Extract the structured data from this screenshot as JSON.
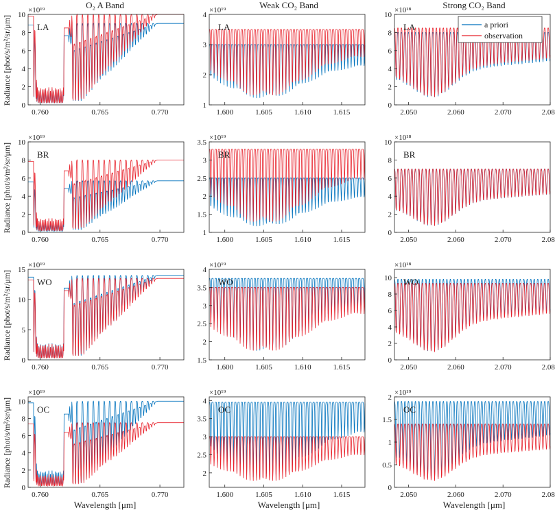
{
  "figure": {
    "column_titles": [
      "O₂ A Band",
      "Weak CO₂ Band",
      "Strong CO₂ Band"
    ],
    "row_labels": [
      "LA",
      "BR",
      "WO",
      "OC"
    ],
    "ylabel": "Radiance [phot/s/m²/sr/μm]",
    "xlabel": "Wavelength [μm]",
    "legend": [
      "a priori",
      "observation"
    ],
    "colors": {
      "a_priori": "#0072BD",
      "observation": "#E8212B"
    }
  },
  "chart_data": [
    {
      "type": "line",
      "row": "LA",
      "band": "O₂ A Band",
      "exponent": "×10¹⁹",
      "xlim": [
        0.759,
        0.772
      ],
      "ylim": [
        0,
        10
      ],
      "xticks": [
        {
          "v": 0.76,
          "label": "0.760"
        },
        {
          "v": 0.765,
          "label": "0.765"
        },
        {
          "v": 0.77,
          "label": "0.770"
        }
      ],
      "yticks": [
        {
          "v": 0,
          "label": "0"
        },
        {
          "v": 2,
          "label": "2"
        },
        {
          "v": 4,
          "label": "4"
        },
        {
          "v": 6,
          "label": "6"
        },
        {
          "v": 8,
          "label": "8"
        },
        {
          "v": 10,
          "label": "10"
        }
      ],
      "series": [
        {
          "name": "a priori",
          "cont": 9.0
        },
        {
          "name": "observation",
          "cont": 10.0
        }
      ]
    },
    {
      "type": "line",
      "row": "LA",
      "band": "Weak CO₂ Band",
      "exponent": "×10¹⁹",
      "xlim": [
        1.598,
        1.618
      ],
      "ylim": [
        1,
        4
      ],
      "xticks": [
        {
          "v": 1.6,
          "label": "1.600"
        },
        {
          "v": 1.605,
          "label": "1.605"
        },
        {
          "v": 1.61,
          "label": "1.610"
        },
        {
          "v": 1.615,
          "label": "1.615"
        }
      ],
      "yticks": [
        {
          "v": 1,
          "label": "1"
        },
        {
          "v": 2,
          "label": "2"
        },
        {
          "v": 3,
          "label": "3"
        },
        {
          "v": 4,
          "label": "4"
        }
      ],
      "series": [
        {
          "name": "a priori",
          "cont": 3.0
        },
        {
          "name": "observation",
          "cont": 3.5
        }
      ]
    },
    {
      "type": "line",
      "row": "LA",
      "band": "Strong CO₂ Band",
      "exponent": "×10¹⁸",
      "xlim": [
        2.047,
        2.08
      ],
      "ylim": [
        0,
        10
      ],
      "xticks": [
        {
          "v": 2.05,
          "label": "2.050"
        },
        {
          "v": 2.06,
          "label": "2.060"
        },
        {
          "v": 2.07,
          "label": "2.070"
        },
        {
          "v": 2.08,
          "label": "2.080"
        }
      ],
      "yticks": [
        {
          "v": 0,
          "label": "0"
        },
        {
          "v": 2,
          "label": "2"
        },
        {
          "v": 4,
          "label": "4"
        },
        {
          "v": 6,
          "label": "6"
        },
        {
          "v": 8,
          "label": "8"
        },
        {
          "v": 10,
          "label": "10"
        }
      ],
      "series": [
        {
          "name": "a priori",
          "cont": 8.0
        },
        {
          "name": "observation",
          "cont": 8.5
        }
      ]
    },
    {
      "type": "line",
      "row": "BR",
      "band": "O₂ A Band",
      "exponent": "×10¹⁹",
      "xlim": [
        0.759,
        0.772
      ],
      "ylim": [
        0,
        10
      ],
      "xticks": [
        {
          "v": 0.76,
          "label": "0.760"
        },
        {
          "v": 0.765,
          "label": "0.765"
        },
        {
          "v": 0.77,
          "label": "0.770"
        }
      ],
      "yticks": [
        {
          "v": 0,
          "label": "0"
        },
        {
          "v": 2,
          "label": "2"
        },
        {
          "v": 4,
          "label": "4"
        },
        {
          "v": 6,
          "label": "6"
        },
        {
          "v": 8,
          "label": "8"
        },
        {
          "v": 10,
          "label": "10"
        }
      ],
      "series": [
        {
          "name": "a priori",
          "cont": 5.7
        },
        {
          "name": "observation",
          "cont": 8.0
        }
      ]
    },
    {
      "type": "line",
      "row": "BR",
      "band": "Weak CO₂ Band",
      "exponent": "×10¹⁹",
      "xlim": [
        1.598,
        1.618
      ],
      "ylim": [
        1,
        3.5
      ],
      "xticks": [
        {
          "v": 1.6,
          "label": "1.600"
        },
        {
          "v": 1.605,
          "label": "1.605"
        },
        {
          "v": 1.61,
          "label": "1.610"
        },
        {
          "v": 1.615,
          "label": "1.615"
        }
      ],
      "yticks": [
        {
          "v": 1,
          "label": "1"
        },
        {
          "v": 1.5,
          "label": "1.5"
        },
        {
          "v": 2,
          "label": "2"
        },
        {
          "v": 2.5,
          "label": "2.5"
        },
        {
          "v": 3,
          "label": "3"
        },
        {
          "v": 3.5,
          "label": "3.5"
        }
      ],
      "series": [
        {
          "name": "a priori",
          "cont": 2.5
        },
        {
          "name": "observation",
          "cont": 3.3
        }
      ]
    },
    {
      "type": "line",
      "row": "BR",
      "band": "Strong CO₂ Band",
      "exponent": "×10¹⁸",
      "xlim": [
        2.047,
        2.08
      ],
      "ylim": [
        0,
        10
      ],
      "xticks": [
        {
          "v": 2.05,
          "label": "2.050"
        },
        {
          "v": 2.06,
          "label": "2.060"
        },
        {
          "v": 2.07,
          "label": "2.070"
        },
        {
          "v": 2.08,
          "label": "2.080"
        }
      ],
      "yticks": [
        {
          "v": 0,
          "label": "0"
        },
        {
          "v": 2,
          "label": "2"
        },
        {
          "v": 4,
          "label": "4"
        },
        {
          "v": 6,
          "label": "6"
        },
        {
          "v": 8,
          "label": "8"
        },
        {
          "v": 10,
          "label": "10"
        }
      ],
      "series": [
        {
          "name": "a priori",
          "cont": 7.0
        },
        {
          "name": "observation",
          "cont": 7.0
        }
      ]
    },
    {
      "type": "line",
      "row": "WO",
      "band": "O₂ A Band",
      "exponent": "×10¹⁹",
      "xlim": [
        0.759,
        0.772
      ],
      "ylim": [
        0,
        15
      ],
      "xticks": [
        {
          "v": 0.76,
          "label": "0.760"
        },
        {
          "v": 0.765,
          "label": "0.765"
        },
        {
          "v": 0.77,
          "label": "0.770"
        }
      ],
      "yticks": [
        {
          "v": 0,
          "label": "0"
        },
        {
          "v": 5,
          "label": "5"
        },
        {
          "v": 10,
          "label": "10"
        },
        {
          "v": 15,
          "label": "15"
        }
      ],
      "series": [
        {
          "name": "a priori",
          "cont": 14.0
        },
        {
          "name": "observation",
          "cont": 13.5
        }
      ]
    },
    {
      "type": "line",
      "row": "WO",
      "band": "Weak CO₂ Band",
      "exponent": "×10¹⁹",
      "xlim": [
        1.598,
        1.618
      ],
      "ylim": [
        1.5,
        4
      ],
      "xticks": [
        {
          "v": 1.6,
          "label": "1.600"
        },
        {
          "v": 1.605,
          "label": "1.605"
        },
        {
          "v": 1.61,
          "label": "1.610"
        },
        {
          "v": 1.615,
          "label": "1.615"
        }
      ],
      "yticks": [
        {
          "v": 1.5,
          "label": "1.5"
        },
        {
          "v": 2,
          "label": "2"
        },
        {
          "v": 2.5,
          "label": "2.5"
        },
        {
          "v": 3,
          "label": "3"
        },
        {
          "v": 3.5,
          "label": "3.5"
        },
        {
          "v": 4,
          "label": "4"
        }
      ],
      "series": [
        {
          "name": "a priori",
          "cont": 3.75
        },
        {
          "name": "observation",
          "cont": 3.5
        }
      ]
    },
    {
      "type": "line",
      "row": "WO",
      "band": "Strong CO₂ Band",
      "exponent": "×10¹⁸",
      "xlim": [
        2.047,
        2.08
      ],
      "ylim": [
        0,
        11
      ],
      "xticks": [
        {
          "v": 2.05,
          "label": "2.050"
        },
        {
          "v": 2.06,
          "label": "2.060"
        },
        {
          "v": 2.07,
          "label": "2.070"
        },
        {
          "v": 2.08,
          "label": "2.080"
        }
      ],
      "yticks": [
        {
          "v": 0,
          "label": "0"
        },
        {
          "v": 2,
          "label": "2"
        },
        {
          "v": 4,
          "label": "4"
        },
        {
          "v": 6,
          "label": "6"
        },
        {
          "v": 8,
          "label": "8"
        },
        {
          "v": 10,
          "label": "10"
        }
      ],
      "series": [
        {
          "name": "a priori",
          "cont": 9.8
        },
        {
          "name": "observation",
          "cont": 9.3
        }
      ]
    },
    {
      "type": "line",
      "row": "OC",
      "band": "O₂ A Band",
      "exponent": "×10¹⁹",
      "xlim": [
        0.759,
        0.772
      ],
      "ylim": [
        0,
        10.5
      ],
      "xticks": [
        {
          "v": 0.76,
          "label": "0.760"
        },
        {
          "v": 0.765,
          "label": "0.765"
        },
        {
          "v": 0.77,
          "label": "0.770"
        }
      ],
      "yticks": [
        {
          "v": 0,
          "label": "0"
        },
        {
          "v": 2,
          "label": "2"
        },
        {
          "v": 4,
          "label": "4"
        },
        {
          "v": 6,
          "label": "6"
        },
        {
          "v": 8,
          "label": "8"
        },
        {
          "v": 10,
          "label": "10"
        }
      ],
      "series": [
        {
          "name": "a priori",
          "cont": 10.0
        },
        {
          "name": "observation",
          "cont": 7.5
        }
      ]
    },
    {
      "type": "line",
      "row": "OC",
      "band": "Weak CO₂ Band",
      "exponent": "×10¹⁹",
      "xlim": [
        1.598,
        1.618
      ],
      "ylim": [
        1.6,
        4.1
      ],
      "xticks": [
        {
          "v": 1.6,
          "label": "1.600"
        },
        {
          "v": 1.605,
          "label": "1.605"
        },
        {
          "v": 1.61,
          "label": "1.610"
        },
        {
          "v": 1.615,
          "label": "1.615"
        }
      ],
      "yticks": [
        {
          "v": 2,
          "label": "2"
        },
        {
          "v": 2.5,
          "label": "2.5"
        },
        {
          "v": 3,
          "label": "3"
        },
        {
          "v": 3.5,
          "label": "3.5"
        },
        {
          "v": 4,
          "label": "4"
        }
      ],
      "series": [
        {
          "name": "a priori",
          "cont": 3.95
        },
        {
          "name": "observation",
          "cont": 3.0
        }
      ]
    },
    {
      "type": "line",
      "row": "OC",
      "band": "Strong CO₂ Band",
      "exponent": "×10¹⁹",
      "xlim": [
        2.047,
        2.08
      ],
      "ylim": [
        0,
        2
      ],
      "xticks": [
        {
          "v": 2.05,
          "label": "2.050"
        },
        {
          "v": 2.06,
          "label": "2.060"
        },
        {
          "v": 2.07,
          "label": "2.070"
        },
        {
          "v": 2.08,
          "label": "2.080"
        }
      ],
      "yticks": [
        {
          "v": 0,
          "label": "0"
        },
        {
          "v": 0.5,
          "label": "0.5"
        },
        {
          "v": 1,
          "label": "1"
        },
        {
          "v": 1.5,
          "label": "1.5"
        },
        {
          "v": 2,
          "label": "2"
        }
      ],
      "series": [
        {
          "name": "a priori",
          "cont": 1.9
        },
        {
          "name": "observation",
          "cont": 1.4
        }
      ]
    }
  ]
}
